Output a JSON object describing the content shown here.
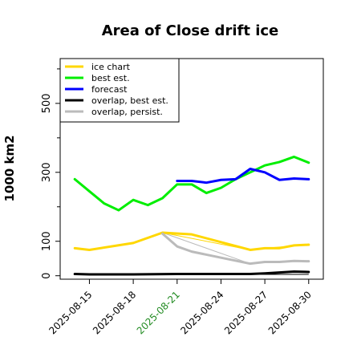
{
  "chart_data": {
    "type": "line",
    "title": "Area of Close drift ice",
    "ylabel": "1000 km2",
    "xlabel": "",
    "ylim": [
      -10,
      630
    ],
    "yticks": [
      0,
      100,
      300,
      500
    ],
    "x_range": [
      "2025-08-13",
      "2025-08-31"
    ],
    "xticks": [
      {
        "date": "2025-08-15",
        "label": "2025-08-15",
        "color": "#000000"
      },
      {
        "date": "2025-08-18",
        "label": "2025-08-18",
        "color": "#000000"
      },
      {
        "date": "2025-08-21",
        "label": "2025-08-21",
        "color": "#228b22"
      },
      {
        "date": "2025-08-24",
        "label": "2025-08-24",
        "color": "#000000"
      },
      {
        "date": "2025-08-27",
        "label": "2025-08-27",
        "color": "#000000"
      },
      {
        "date": "2025-08-30",
        "label": "2025-08-30",
        "color": "#000000"
      }
    ],
    "legend_position": "top-left",
    "grid": false,
    "series": [
      {
        "name": "ice chart",
        "color": "#ffd700",
        "points": [
          {
            "x": "2025-08-14",
            "y": 80
          },
          {
            "x": "2025-08-15",
            "y": 75
          },
          {
            "x": "2025-08-18",
            "y": 95
          },
          {
            "x": "2025-08-20",
            "y": 125
          },
          {
            "x": "2025-08-22",
            "y": 120
          },
          {
            "x": "2025-08-26",
            "y": 75
          },
          {
            "x": "2025-08-27",
            "y": 80
          },
          {
            "x": "2025-08-28",
            "y": 80
          },
          {
            "x": "2025-08-29",
            "y": 88
          },
          {
            "x": "2025-08-30",
            "y": 90
          }
        ]
      },
      {
        "name": "best est.",
        "color": "#00ee00",
        "points": [
          {
            "x": "2025-08-14",
            "y": 280
          },
          {
            "x": "2025-08-15",
            "y": 245
          },
          {
            "x": "2025-08-16",
            "y": 210
          },
          {
            "x": "2025-08-17",
            "y": 190
          },
          {
            "x": "2025-08-18",
            "y": 220
          },
          {
            "x": "2025-08-19",
            "y": 205
          },
          {
            "x": "2025-08-20",
            "y": 225
          },
          {
            "x": "2025-08-21",
            "y": 265
          },
          {
            "x": "2025-08-22",
            "y": 265
          },
          {
            "x": "2025-08-23",
            "y": 240
          },
          {
            "x": "2025-08-24",
            "y": 255
          },
          {
            "x": "2025-08-25",
            "y": 280
          },
          {
            "x": "2025-08-26",
            "y": 300
          },
          {
            "x": "2025-08-27",
            "y": 320
          },
          {
            "x": "2025-08-28",
            "y": 330
          },
          {
            "x": "2025-08-29",
            "y": 345
          },
          {
            "x": "2025-08-30",
            "y": 328
          }
        ]
      },
      {
        "name": "forecast",
        "color": "#0000ff",
        "points": [
          {
            "x": "2025-08-21",
            "y": 275
          },
          {
            "x": "2025-08-22",
            "y": 275
          },
          {
            "x": "2025-08-23",
            "y": 270
          },
          {
            "x": "2025-08-24",
            "y": 278
          },
          {
            "x": "2025-08-25",
            "y": 280
          },
          {
            "x": "2025-08-26",
            "y": 310
          },
          {
            "x": "2025-08-27",
            "y": 300
          },
          {
            "x": "2025-08-28",
            "y": 278
          },
          {
            "x": "2025-08-29",
            "y": 282
          },
          {
            "x": "2025-08-30",
            "y": 280
          }
        ]
      },
      {
        "name": "overlap, best est.",
        "color": "#000000",
        "points": [
          {
            "x": "2025-08-14",
            "y": 5
          },
          {
            "x": "2025-08-15",
            "y": 4
          },
          {
            "x": "2025-08-18",
            "y": 4
          },
          {
            "x": "2025-08-21",
            "y": 5
          },
          {
            "x": "2025-08-22",
            "y": 5
          },
          {
            "x": "2025-08-26",
            "y": 5
          },
          {
            "x": "2025-08-27",
            "y": 7
          },
          {
            "x": "2025-08-29",
            "y": 12
          },
          {
            "x": "2025-08-30",
            "y": 11
          }
        ]
      },
      {
        "name": "overlap, persist.",
        "color": "#bbbbbb",
        "points": [
          {
            "x": "2025-08-20",
            "y": 122
          },
          {
            "x": "2025-08-21",
            "y": 85
          },
          {
            "x": "2025-08-22",
            "y": 70
          },
          {
            "x": "2025-08-26",
            "y": 35
          },
          {
            "x": "2025-08-27",
            "y": 40
          },
          {
            "x": "2025-08-28",
            "y": 40
          },
          {
            "x": "2025-08-29",
            "y": 43
          },
          {
            "x": "2025-08-30",
            "y": 42
          }
        ]
      }
    ],
    "thin_overlays": [
      {
        "color": "#ffd700",
        "points": [
          {
            "x": "2025-08-20",
            "y": 125
          },
          {
            "x": "2025-08-26",
            "y": 75
          },
          {
            "x": "2025-08-27",
            "y": 80
          },
          {
            "x": "2025-08-30",
            "y": 90
          }
        ]
      },
      {
        "color": "#000000",
        "points": [
          {
            "x": "2025-08-21",
            "y": 4
          },
          {
            "x": "2025-08-30",
            "y": 4
          }
        ]
      },
      {
        "color": "#bbbbbb",
        "points": [
          {
            "x": "2025-08-20",
            "y": 125
          },
          {
            "x": "2025-08-26",
            "y": 35
          }
        ]
      }
    ]
  }
}
